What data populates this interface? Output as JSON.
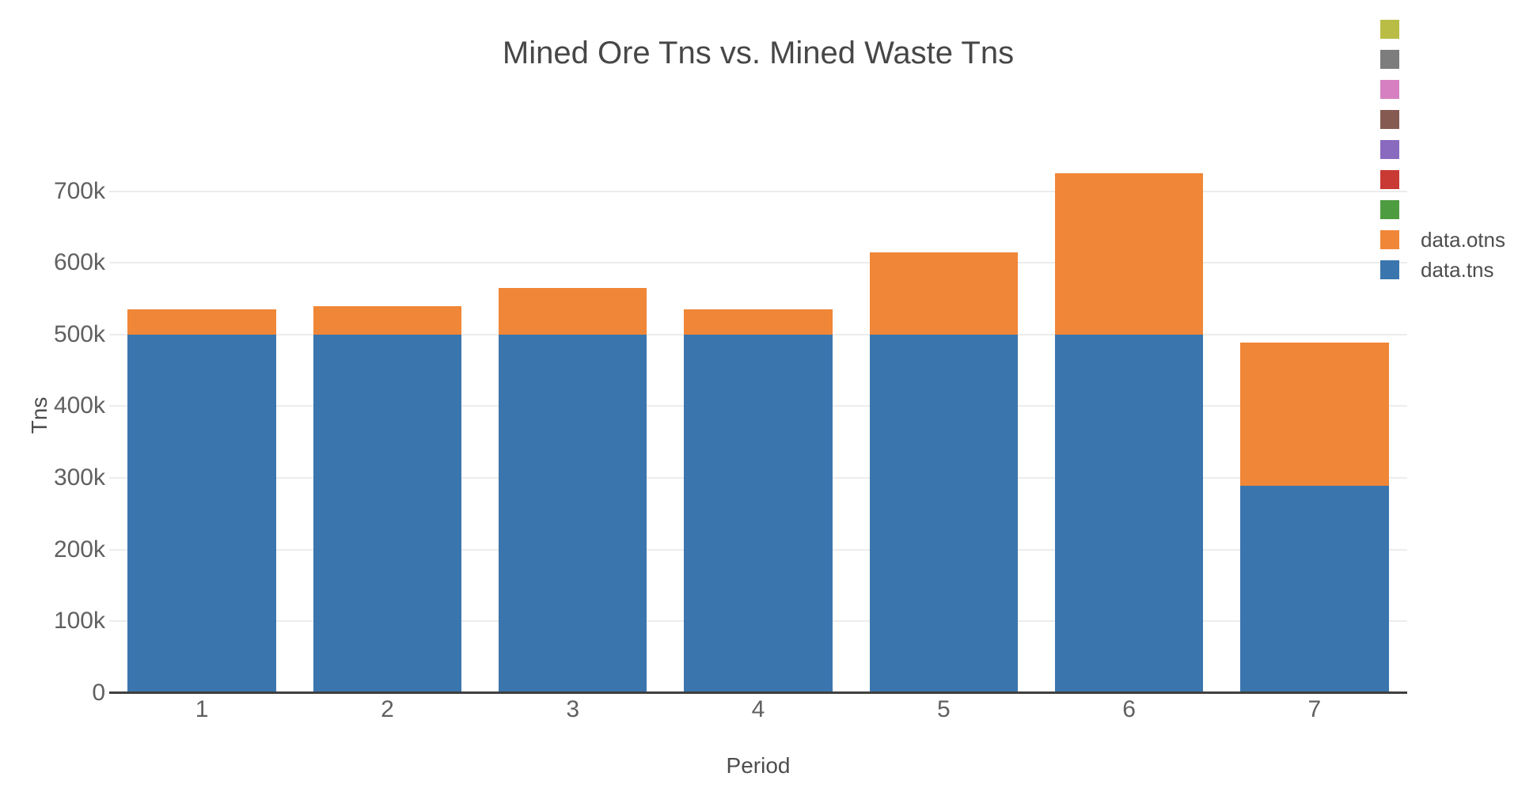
{
  "chart_data": {
    "type": "bar",
    "stacked": true,
    "title": "Mined Ore Tns vs. Mined Waste Tns",
    "xlabel": "Period",
    "ylabel": "Tns",
    "categories": [
      "1",
      "2",
      "3",
      "4",
      "5",
      "6",
      "7"
    ],
    "series": [
      {
        "name": "data.tns",
        "color": "#3a76ad",
        "values": [
          500000,
          500000,
          500000,
          500000,
          500000,
          500000,
          289000
        ]
      },
      {
        "name": "data.otns",
        "color": "#f08637",
        "values": [
          35000,
          40000,
          65000,
          35000,
          115000,
          225000,
          200000
        ]
      }
    ],
    "ylim": [
      0,
      790000
    ],
    "yticks": [
      {
        "value": 0,
        "label": "0"
      },
      {
        "value": 100000,
        "label": "100k"
      },
      {
        "value": 200000,
        "label": "200k"
      },
      {
        "value": 300000,
        "label": "300k"
      },
      {
        "value": 400000,
        "label": "400k"
      },
      {
        "value": 500000,
        "label": "500k"
      },
      {
        "value": 600000,
        "label": "600k"
      },
      {
        "value": 700000,
        "label": "700k"
      }
    ],
    "grid": true,
    "bar_fraction": 0.8,
    "legend_position": "top-right"
  },
  "legend": {
    "items": [
      {
        "label": "",
        "color": "#b9bd45",
        "name": "olive"
      },
      {
        "label": "",
        "color": "#7d7d7d",
        "name": "gray"
      },
      {
        "label": "",
        "color": "#d680c1",
        "name": "pink"
      },
      {
        "label": "",
        "color": "#855a51",
        "name": "brown"
      },
      {
        "label": "",
        "color": "#8a6abf",
        "name": "purple"
      },
      {
        "label": "",
        "color": "#c93a34",
        "name": "red"
      },
      {
        "label": "",
        "color": "#4e9c40",
        "name": "green"
      },
      {
        "label": "data.otns",
        "color": "#f08637",
        "name": "orange"
      },
      {
        "label": "data.tns",
        "color": "#3a76ad",
        "name": "blue"
      }
    ]
  },
  "style": {
    "background": "#ffffff",
    "grid_color": "#ececec",
    "axis_line_color": "#3f3f3f",
    "tick_label_color": "#606060",
    "axis_title_color": "#4d4d4d",
    "title_color": "#474747"
  }
}
